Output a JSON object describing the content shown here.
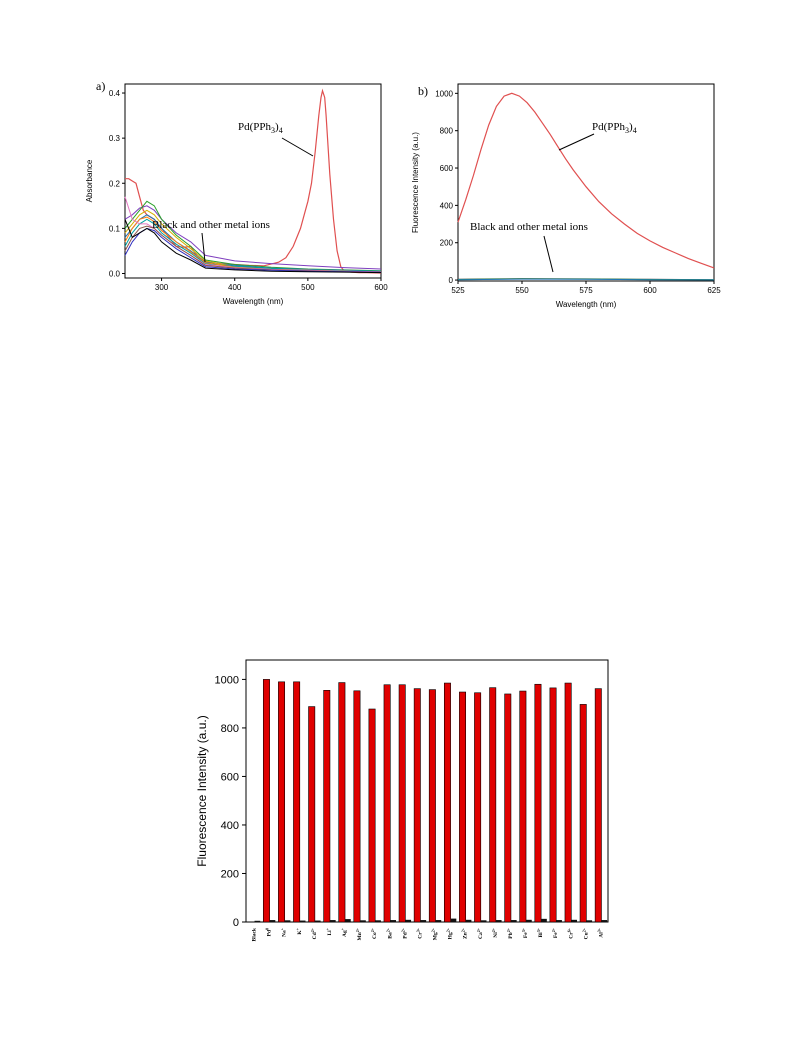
{
  "colors": {
    "pd_curve": "#e05050",
    "bar_fill": "#e00000",
    "black_bar": "#111111",
    "axis": "#000000"
  },
  "chart_data": [
    {
      "id": "a",
      "type": "line",
      "panel_label": "a)",
      "xlabel": "Wavelength (nm)",
      "ylabel": "Absorbance",
      "xlim": [
        250,
        600
      ],
      "ylim": [
        -0.01,
        0.42
      ],
      "xticks": [
        300,
        400,
        500,
        600
      ],
      "yticks": [
        0.0,
        0.1,
        0.2,
        0.3,
        0.4
      ],
      "ytick_labels": [
        "0.0",
        "0.1",
        "0.2",
        "0.3",
        "0.4"
      ],
      "grid": false,
      "annotations": [
        {
          "text": "Pd(PPh",
          "sub": "3",
          "close": ")",
          "sub2": "4"
        },
        {
          "text": "Black and other metal ions"
        }
      ],
      "series": [
        {
          "color": "#e05050",
          "x": [
            250,
            255,
            260,
            265,
            270,
            275,
            280,
            290,
            300,
            310,
            320,
            330,
            340,
            350,
            360,
            380,
            400,
            420,
            440,
            460,
            470,
            480,
            490,
            495,
            500,
            505,
            510,
            515,
            518,
            520,
            523,
            525,
            530,
            535,
            540,
            545,
            550,
            560,
            570,
            580,
            600
          ],
          "y": [
            0.21,
            0.21,
            0.205,
            0.2,
            0.17,
            0.14,
            0.13,
            0.12,
            0.1,
            0.08,
            0.06,
            0.058,
            0.06,
            0.035,
            0.027,
            0.022,
            0.02,
            0.018,
            0.017,
            0.025,
            0.035,
            0.06,
            0.1,
            0.13,
            0.16,
            0.2,
            0.27,
            0.35,
            0.39,
            0.405,
            0.39,
            0.35,
            0.22,
            0.12,
            0.05,
            0.015,
            0.005,
            0.003,
            0.002,
            0.002,
            0.001
          ]
        },
        {
          "color": "#7f3fbf",
          "x": [
            250,
            260,
            270,
            280,
            290,
            300,
            320,
            340,
            360,
            400,
            450,
            500,
            550,
            600
          ],
          "y": [
            0.12,
            0.13,
            0.145,
            0.15,
            0.14,
            0.12,
            0.09,
            0.07,
            0.04,
            0.028,
            0.022,
            0.017,
            0.013,
            0.01
          ]
        },
        {
          "color": "#2aa02a",
          "x": [
            250,
            260,
            270,
            280,
            290,
            300,
            320,
            340,
            360,
            400,
            450,
            500,
            550,
            600
          ],
          "y": [
            0.1,
            0.12,
            0.14,
            0.16,
            0.15,
            0.12,
            0.085,
            0.06,
            0.03,
            0.02,
            0.014,
            0.01,
            0.008,
            0.006
          ]
        },
        {
          "color": "#1f77b4",
          "x": [
            250,
            260,
            270,
            280,
            290,
            300,
            320,
            340,
            360,
            400,
            450,
            500,
            550,
            600
          ],
          "y": [
            0.08,
            0.1,
            0.12,
            0.13,
            0.12,
            0.1,
            0.07,
            0.05,
            0.025,
            0.018,
            0.012,
            0.009,
            0.007,
            0.005
          ]
        },
        {
          "color": "#d4b000",
          "x": [
            250,
            260,
            270,
            280,
            290,
            300,
            320,
            340,
            360,
            400,
            450,
            500,
            550,
            600
          ],
          "y": [
            0.09,
            0.11,
            0.13,
            0.14,
            0.13,
            0.11,
            0.08,
            0.055,
            0.028,
            0.015,
            0.01,
            0.008,
            0.006,
            0.004
          ]
        },
        {
          "color": "#00a0a0",
          "x": [
            250,
            260,
            270,
            280,
            290,
            300,
            320,
            340,
            360,
            400,
            450,
            500,
            550,
            600
          ],
          "y": [
            0.06,
            0.09,
            0.11,
            0.12,
            0.11,
            0.09,
            0.065,
            0.045,
            0.022,
            0.016,
            0.011,
            0.008,
            0.006,
            0.005
          ]
        },
        {
          "color": "#ff7f0e",
          "x": [
            250,
            260,
            270,
            280,
            290,
            300,
            320,
            340,
            360,
            400,
            450,
            500,
            550,
            600
          ],
          "y": [
            0.07,
            0.1,
            0.12,
            0.125,
            0.115,
            0.095,
            0.07,
            0.048,
            0.024,
            0.014,
            0.009,
            0.007,
            0.005,
            0.004
          ]
        },
        {
          "color": "#e377c2",
          "x": [
            250,
            260,
            270,
            280,
            290,
            300,
            320,
            340,
            360,
            400,
            450,
            500,
            550,
            600
          ],
          "y": [
            0.17,
            0.12,
            0.11,
            0.11,
            0.1,
            0.085,
            0.06,
            0.04,
            0.02,
            0.013,
            0.009,
            0.007,
            0.005,
            0.004
          ]
        },
        {
          "color": "#8c564b",
          "x": [
            250,
            260,
            270,
            280,
            290,
            300,
            320,
            340,
            360,
            400,
            450,
            500,
            550,
            600
          ],
          "y": [
            0.05,
            0.08,
            0.1,
            0.105,
            0.1,
            0.085,
            0.06,
            0.04,
            0.018,
            0.012,
            0.008,
            0.006,
            0.004,
            0.003
          ]
        },
        {
          "color": "#3030c0",
          "x": [
            250,
            260,
            270,
            280,
            290,
            300,
            320,
            340,
            360,
            400,
            450,
            500,
            550,
            600
          ],
          "y": [
            0.04,
            0.07,
            0.09,
            0.1,
            0.095,
            0.08,
            0.055,
            0.035,
            0.015,
            0.01,
            0.007,
            0.005,
            0.004,
            0.003
          ]
        },
        {
          "color": "#000000",
          "x": [
            250,
            260,
            270,
            280,
            290,
            300,
            320,
            340,
            360,
            400,
            450,
            500,
            550,
            600
          ],
          "y": [
            0.12,
            0.08,
            0.09,
            0.1,
            0.09,
            0.07,
            0.045,
            0.03,
            0.012,
            0.008,
            0.005,
            0.004,
            0.003,
            0.002
          ]
        }
      ]
    },
    {
      "id": "b",
      "type": "line",
      "panel_label": "b)",
      "xlabel": "Wavelength (nm)",
      "ylabel": "Fluorescence Intensity (a.u.)",
      "xlim": [
        525,
        625
      ],
      "ylim": [
        -5,
        1050
      ],
      "xticks": [
        525,
        550,
        575,
        600,
        625
      ],
      "yticks": [
        0,
        200,
        400,
        600,
        800,
        1000
      ],
      "ytick_labels": [
        "0",
        "200",
        "400",
        "600",
        "800",
        "1000"
      ],
      "grid": false,
      "annotations": [
        {
          "text": "Pd(PPh",
          "sub": "3",
          "close": ")",
          "sub2": "4"
        },
        {
          "text": "Black and other metal ions"
        }
      ],
      "series": [
        {
          "color": "#e05050",
          "x": [
            525,
            528,
            531,
            534,
            537,
            540,
            543,
            546,
            549,
            552,
            555,
            558,
            561,
            564,
            567,
            570,
            575,
            580,
            585,
            590,
            595,
            600,
            605,
            610,
            615,
            620,
            625
          ],
          "y": [
            310,
            430,
            560,
            700,
            830,
            930,
            985,
            1000,
            985,
            950,
            900,
            840,
            780,
            715,
            650,
            590,
            500,
            420,
            355,
            300,
            250,
            210,
            175,
            145,
            115,
            90,
            65
          ]
        },
        {
          "color": "#444444",
          "x": [
            525,
            550,
            575,
            600,
            625
          ],
          "y": [
            4,
            8,
            6,
            4,
            2
          ]
        },
        {
          "color": "#2aa02a",
          "x": [
            525,
            550,
            575,
            600,
            625
          ],
          "y": [
            3,
            6,
            5,
            3,
            2
          ]
        },
        {
          "color": "#1f77b4",
          "x": [
            525,
            550,
            575,
            600,
            625
          ],
          "y": [
            2,
            5,
            4,
            2,
            1
          ]
        }
      ]
    },
    {
      "id": "c",
      "type": "bar",
      "ylabel": "Fluorescence Intensity (a.u.)",
      "ylim": [
        0,
        1080
      ],
      "yticks": [
        0,
        200,
        400,
        600,
        800,
        1000
      ],
      "ytick_labels": [
        "0",
        "200",
        "400",
        "600",
        "800",
        "1000"
      ],
      "grid": false,
      "categories": [
        "Black",
        "Pd",
        "Na",
        "K",
        "Cd",
        "Li",
        "Ag",
        "Mn",
        "Co",
        "Ba",
        "Pd",
        "Cr",
        "Mg",
        "Hg",
        "Zn",
        "Ca",
        "Ni",
        "Pb",
        "Fe",
        "Bi",
        "Fe",
        "Cr",
        "Cu",
        "Al"
      ],
      "category_sup": [
        "",
        "0",
        "+",
        "+",
        "2+",
        "+",
        "+",
        "2+",
        "2+",
        "2+",
        "2+",
        "3+",
        "2+",
        "2+",
        "2+",
        "2+",
        "2+",
        "2+",
        "3+",
        "3+",
        "2+",
        "6+",
        "2+",
        "3+"
      ],
      "series": [
        {
          "name": "",
          "color": "#e00000",
          "values": [
            0,
            1000,
            990,
            990,
            888,
            955,
            987,
            953,
            878,
            978,
            978,
            962,
            958,
            985,
            948,
            945,
            966,
            940,
            952,
            980,
            965,
            985,
            897,
            962
          ]
        },
        {
          "name": "",
          "color": "#111111",
          "values": [
            5,
            8,
            7,
            6,
            6,
            8,
            12,
            7,
            7,
            8,
            9,
            8,
            8,
            14,
            9,
            7,
            8,
            8,
            9,
            13,
            8,
            9,
            7,
            8
          ]
        }
      ]
    }
  ]
}
